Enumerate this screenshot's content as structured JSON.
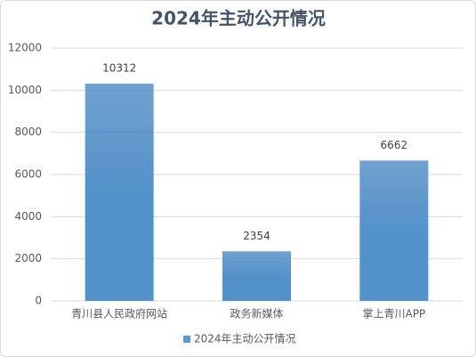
{
  "chart_data": {
    "type": "bar",
    "title": "2024年主动公开情况",
    "categories": [
      "青川县人民政府网站",
      "政务新媒体",
      "掌上青川APP"
    ],
    "series": [
      {
        "name": "2024年主动公开情况",
        "color": "#5b9bd5",
        "values": [
          10312,
          2354,
          6662
        ]
      }
    ],
    "ylim": [
      0,
      12000
    ],
    "yticks": [
      0,
      2000,
      4000,
      6000,
      8000,
      10000,
      12000
    ],
    "grid": true,
    "legend": "bottom"
  }
}
